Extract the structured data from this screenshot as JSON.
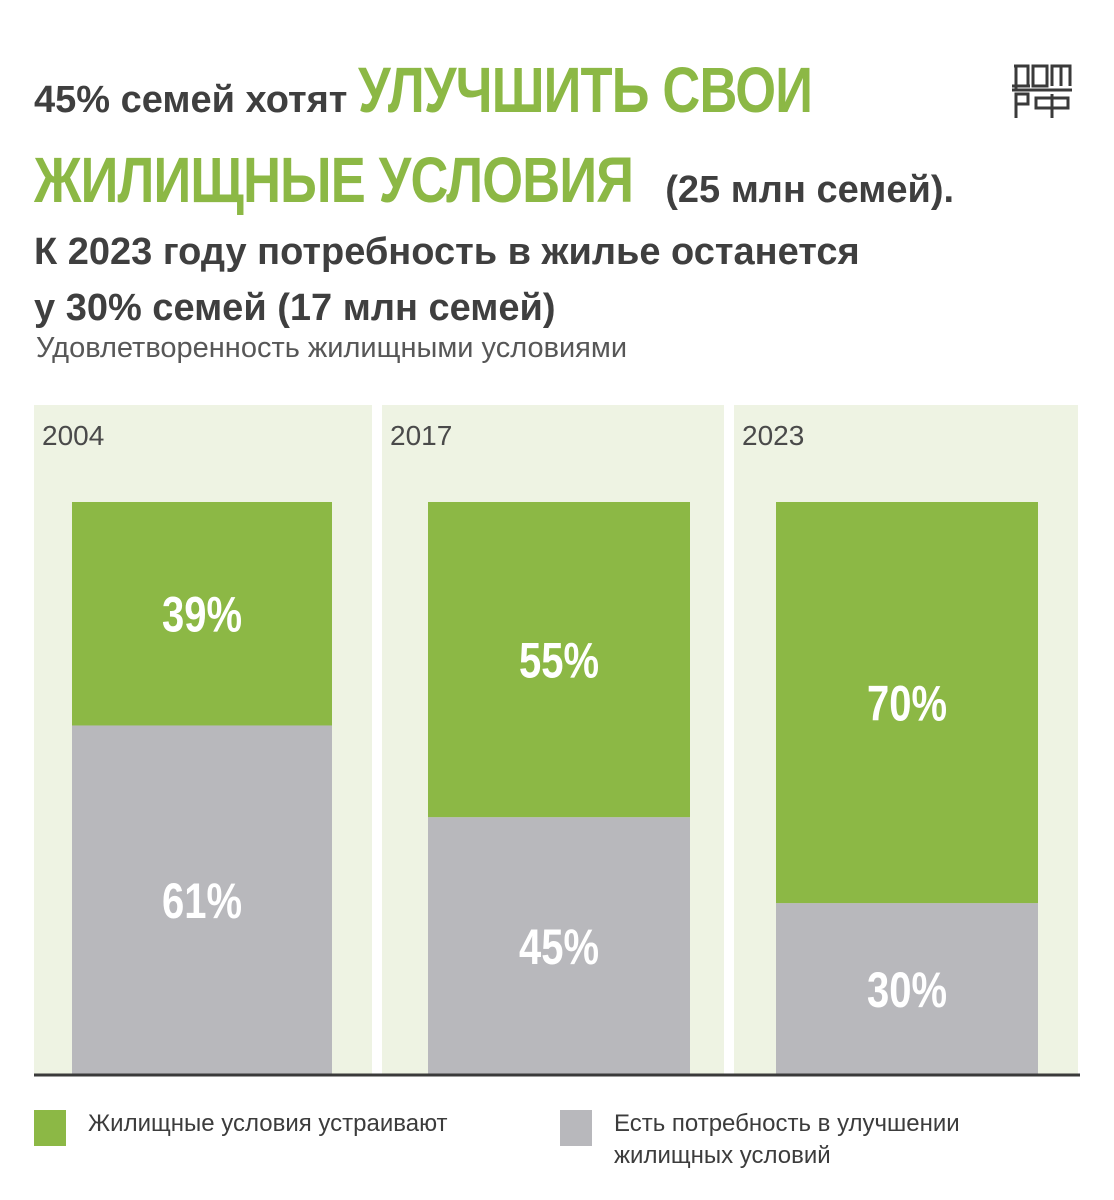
{
  "headline": {
    "line1_a": "45% семей хотят ",
    "line1_b": "УЛУЧШИТЬ СВОИ",
    "line2_a": "ЖИЛИЩНЫЕ УСЛОВИЯ",
    "line2_b": " (25 млн семей).",
    "line3": "К 2023 году потребность в жилье останется",
    "line4": "у 30% семей (17 млн семей)"
  },
  "logo": {
    "icon": "dom-rf-logo",
    "text": "ДОМ РФ"
  },
  "colors": {
    "green": "#8cb845",
    "gray": "#b8b8bc",
    "panel": "#eef3e3",
    "axis": "#3a3a3a"
  },
  "chart_data": {
    "type": "bar",
    "stacked": true,
    "title": "Удовлетворенность жилищными условиями",
    "categories": [
      "2004",
      "2017",
      "2023"
    ],
    "series": [
      {
        "name": "Жилищные условия устраивают",
        "values": [
          39,
          55,
          70
        ],
        "labels": [
          "39%",
          "55%",
          "70%"
        ],
        "color": "#8cb845"
      },
      {
        "name": "Есть потребность в улучшении жилищных условий",
        "values": [
          61,
          45,
          30
        ],
        "labels": [
          "61%",
          "45%",
          "30%"
        ],
        "color": "#b8b8bc"
      }
    ],
    "ylim": [
      0,
      100
    ]
  },
  "legend": {
    "item1": "Жилищные условия устраивают",
    "item2_line1": "Есть потребность в улучшении",
    "item2_line2": "жилищных условий"
  }
}
